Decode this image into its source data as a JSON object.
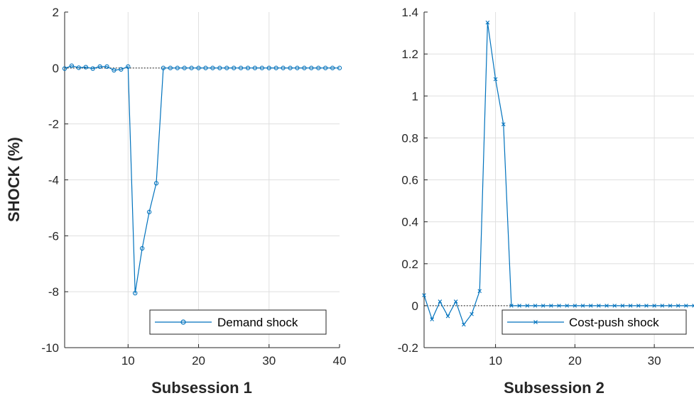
{
  "colors": {
    "series": "#0072bd",
    "grid": "#dfdfdf",
    "axis": "#262626",
    "zero_line": "#000000"
  },
  "chart_data": [
    {
      "type": "line",
      "xlabel": "Subsession 1",
      "ylabel": "SHOCK (%)",
      "xlim": [
        1,
        40
      ],
      "ylim": [
        -10,
        2
      ],
      "xticks": [
        10,
        20,
        30,
        40
      ],
      "yticks": [
        -10,
        -8,
        -6,
        -4,
        -2,
        0,
        2
      ],
      "grid": true,
      "legend": "bottom-right",
      "marker": "circle",
      "zero_reference_line": true,
      "series": [
        {
          "name": "Demand shock",
          "x": [
            1,
            2,
            3,
            4,
            5,
            6,
            7,
            8,
            9,
            10,
            11,
            12,
            13,
            14,
            15,
            16,
            17,
            18,
            19,
            20,
            21,
            22,
            23,
            24,
            25,
            26,
            27,
            28,
            29,
            30,
            31,
            32,
            33,
            34,
            35,
            36,
            37,
            38,
            39,
            40
          ],
          "y": [
            -0.02,
            0.08,
            0.01,
            0.03,
            -0.02,
            0.05,
            0.05,
            -0.08,
            -0.05,
            0.05,
            -8.05,
            -6.45,
            -5.15,
            -4.12,
            0,
            0,
            0,
            0,
            0,
            0,
            0,
            0,
            0,
            0,
            0,
            0,
            0,
            0,
            0,
            0,
            0,
            0,
            0,
            0,
            0,
            0,
            0,
            0,
            0,
            0
          ]
        }
      ]
    },
    {
      "type": "line",
      "xlabel": "Subsession 2",
      "ylabel": "",
      "xlim": [
        1,
        35
      ],
      "ylim": [
        -0.2,
        1.4
      ],
      "xticks": [
        10,
        20,
        30
      ],
      "yticks": [
        -0.2,
        0,
        0.2,
        0.4,
        0.6,
        0.8,
        1,
        1.2,
        1.4
      ],
      "grid": true,
      "legend": "bottom-right",
      "marker": "x",
      "zero_reference_line": true,
      "series": [
        {
          "name": "Cost-push shock",
          "x": [
            1,
            2,
            3,
            4,
            5,
            6,
            7,
            8,
            9,
            10,
            11,
            12,
            13,
            14,
            15,
            16,
            17,
            18,
            19,
            20,
            21,
            22,
            23,
            24,
            25,
            26,
            27,
            28,
            29,
            30,
            31,
            32,
            33,
            34,
            35
          ],
          "y": [
            0.05,
            -0.065,
            0.02,
            -0.05,
            0.02,
            -0.09,
            -0.04,
            0.07,
            1.35,
            1.08,
            0.865,
            0,
            0,
            0,
            0,
            0,
            0,
            0,
            0,
            0,
            0,
            0,
            0,
            0,
            0,
            0,
            0,
            0,
            0,
            0,
            0,
            0,
            0,
            0,
            0
          ]
        }
      ]
    }
  ]
}
